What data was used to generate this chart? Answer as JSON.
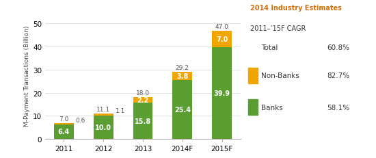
{
  "years": [
    "2011",
    "2012",
    "2013",
    "2014F",
    "2015F"
  ],
  "banks": [
    6.4,
    10.0,
    15.8,
    25.4,
    39.9
  ],
  "non_banks": [
    0.6,
    1.1,
    2.2,
    3.8,
    7.0
  ],
  "totals": [
    7.0,
    11.1,
    18.0,
    29.2,
    47.0
  ],
  "bank_color": "#5a9e32",
  "non_bank_color": "#f0a500",
  "ylabel": "M-Payment Transactions (Billion)",
  "ylim": [
    0,
    55
  ],
  "yticks": [
    0,
    10,
    20,
    30,
    40,
    50
  ],
  "legend_title_orange": "2014 Industry Estimates",
  "legend_subtitle": "2011–’15F CAGR",
  "legend_total_label": "Total",
  "legend_total_value": "60.8%",
  "legend_nonbank_label": "Non-Banks",
  "legend_nonbank_value": "82.7%",
  "legend_bank_label": "Banks",
  "legend_bank_value": "58.1%",
  "bar_width": 0.5,
  "bg_color": "#ffffff"
}
